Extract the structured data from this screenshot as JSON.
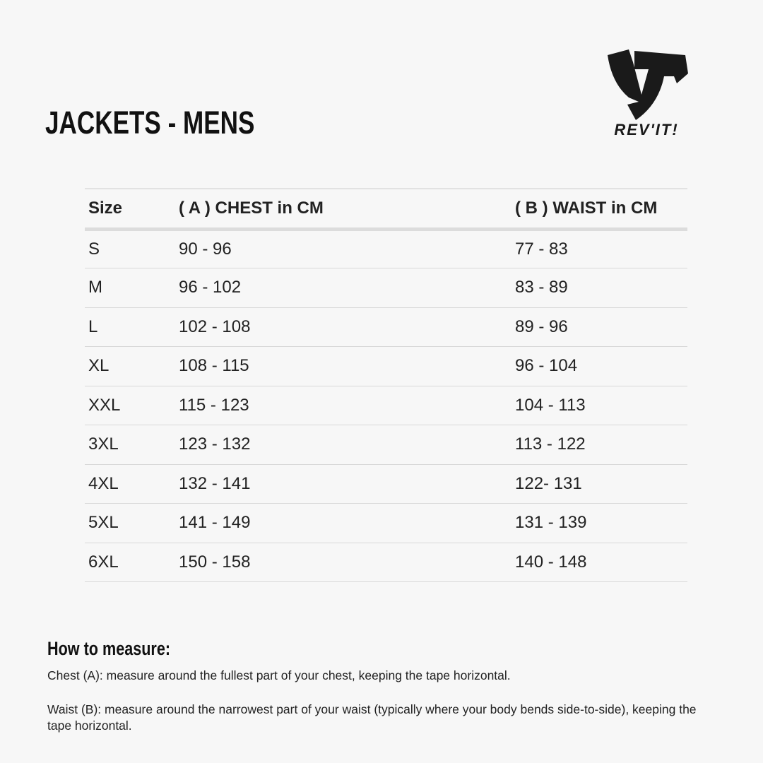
{
  "title": "JACKETS - MENS",
  "logo": {
    "brand": "REV'IT!",
    "color": "#1a1a1a"
  },
  "table": {
    "headers": [
      "Size",
      "( A ) CHEST in CM",
      "( B ) WAIST in CM"
    ],
    "rows": [
      [
        "S",
        "90 - 96",
        "77 - 83"
      ],
      [
        "M",
        "96 - 102",
        "83 - 89"
      ],
      [
        "L",
        "102 - 108",
        "89 - 96"
      ],
      [
        "XL",
        "108 - 115",
        "96 - 104"
      ],
      [
        "XXL",
        "115 - 123",
        "104 - 113"
      ],
      [
        "3XL",
        "123 - 132",
        "113 - 122"
      ],
      [
        "4XL",
        "132 - 141",
        "122- 131"
      ],
      [
        "5XL",
        "141 - 149",
        "131 - 139"
      ],
      [
        "6XL",
        "150 - 158",
        "140 - 148"
      ]
    ]
  },
  "how_to": {
    "heading": "How to measure:",
    "chest": "Chest (A): measure around the fullest part of your chest, keeping the tape horizontal.",
    "waist": "Waist (B): measure around the narrowest part of your waist (typically where your body bends side-to-side), keeping the tape horizontal."
  }
}
